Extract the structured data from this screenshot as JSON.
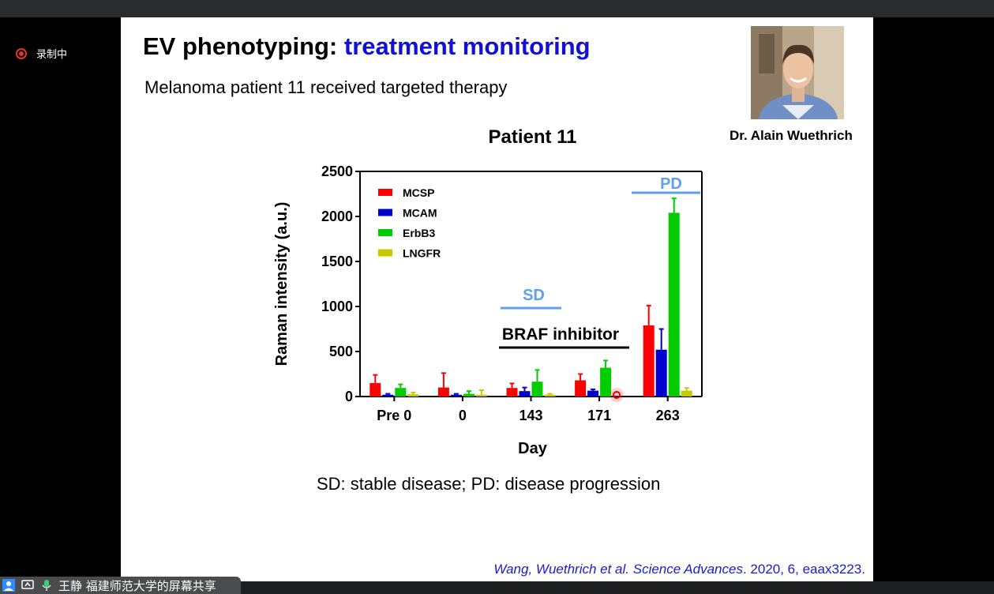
{
  "recording": {
    "label": "录制中"
  },
  "slide": {
    "title_prefix": "EV phenotyping:",
    "title_accent": "treatment monitoring",
    "subtitle": "Melanoma patient 11 received targeted therapy",
    "photo_caption": "Dr. Alain Wuethrich",
    "caption": "SD: stable disease; PD: disease progression",
    "citation_italic": "Wang, Wuethrich et al. Science Advances",
    "citation_rest": ". 2020, 6, eaax3223.",
    "accent_color": "#1111d6"
  },
  "chart_data": {
    "type": "bar",
    "title": "Patient 11",
    "xlabel": "Day",
    "ylabel": "Raman intensity (a.u.)",
    "ylim": [
      0,
      2500
    ],
    "yticks": [
      "0",
      "500",
      "1000",
      "1500",
      "2000",
      "2500"
    ],
    "categories": [
      "Pre 0",
      "0",
      "143",
      "171",
      "263"
    ],
    "legend_position": "top-left",
    "series": [
      {
        "name": "MCSP",
        "color": "#ff0000",
        "values": [
          150,
          100,
          95,
          180,
          790
        ],
        "errors": [
          90,
          160,
          50,
          70,
          220
        ]
      },
      {
        "name": "MCAM",
        "color": "#0000cc",
        "values": [
          20,
          20,
          60,
          65,
          520
        ],
        "errors": [
          10,
          10,
          40,
          15,
          230
        ]
      },
      {
        "name": "ErbB3",
        "color": "#00cc00",
        "values": [
          95,
          30,
          165,
          320,
          2040
        ],
        "errors": [
          40,
          30,
          130,
          80,
          160
        ]
      },
      {
        "name": "LNGFR",
        "color": "#c8c800",
        "values": [
          25,
          20,
          20,
          0,
          65
        ],
        "errors": [
          20,
          50,
          10,
          0,
          30
        ]
      }
    ],
    "annotations": {
      "sd_label": "SD",
      "pd_label": "PD",
      "braf_label": "BRAF inhibitor"
    }
  },
  "share_bar": {
    "text": "王静 福建师范大学的屏幕共享"
  }
}
